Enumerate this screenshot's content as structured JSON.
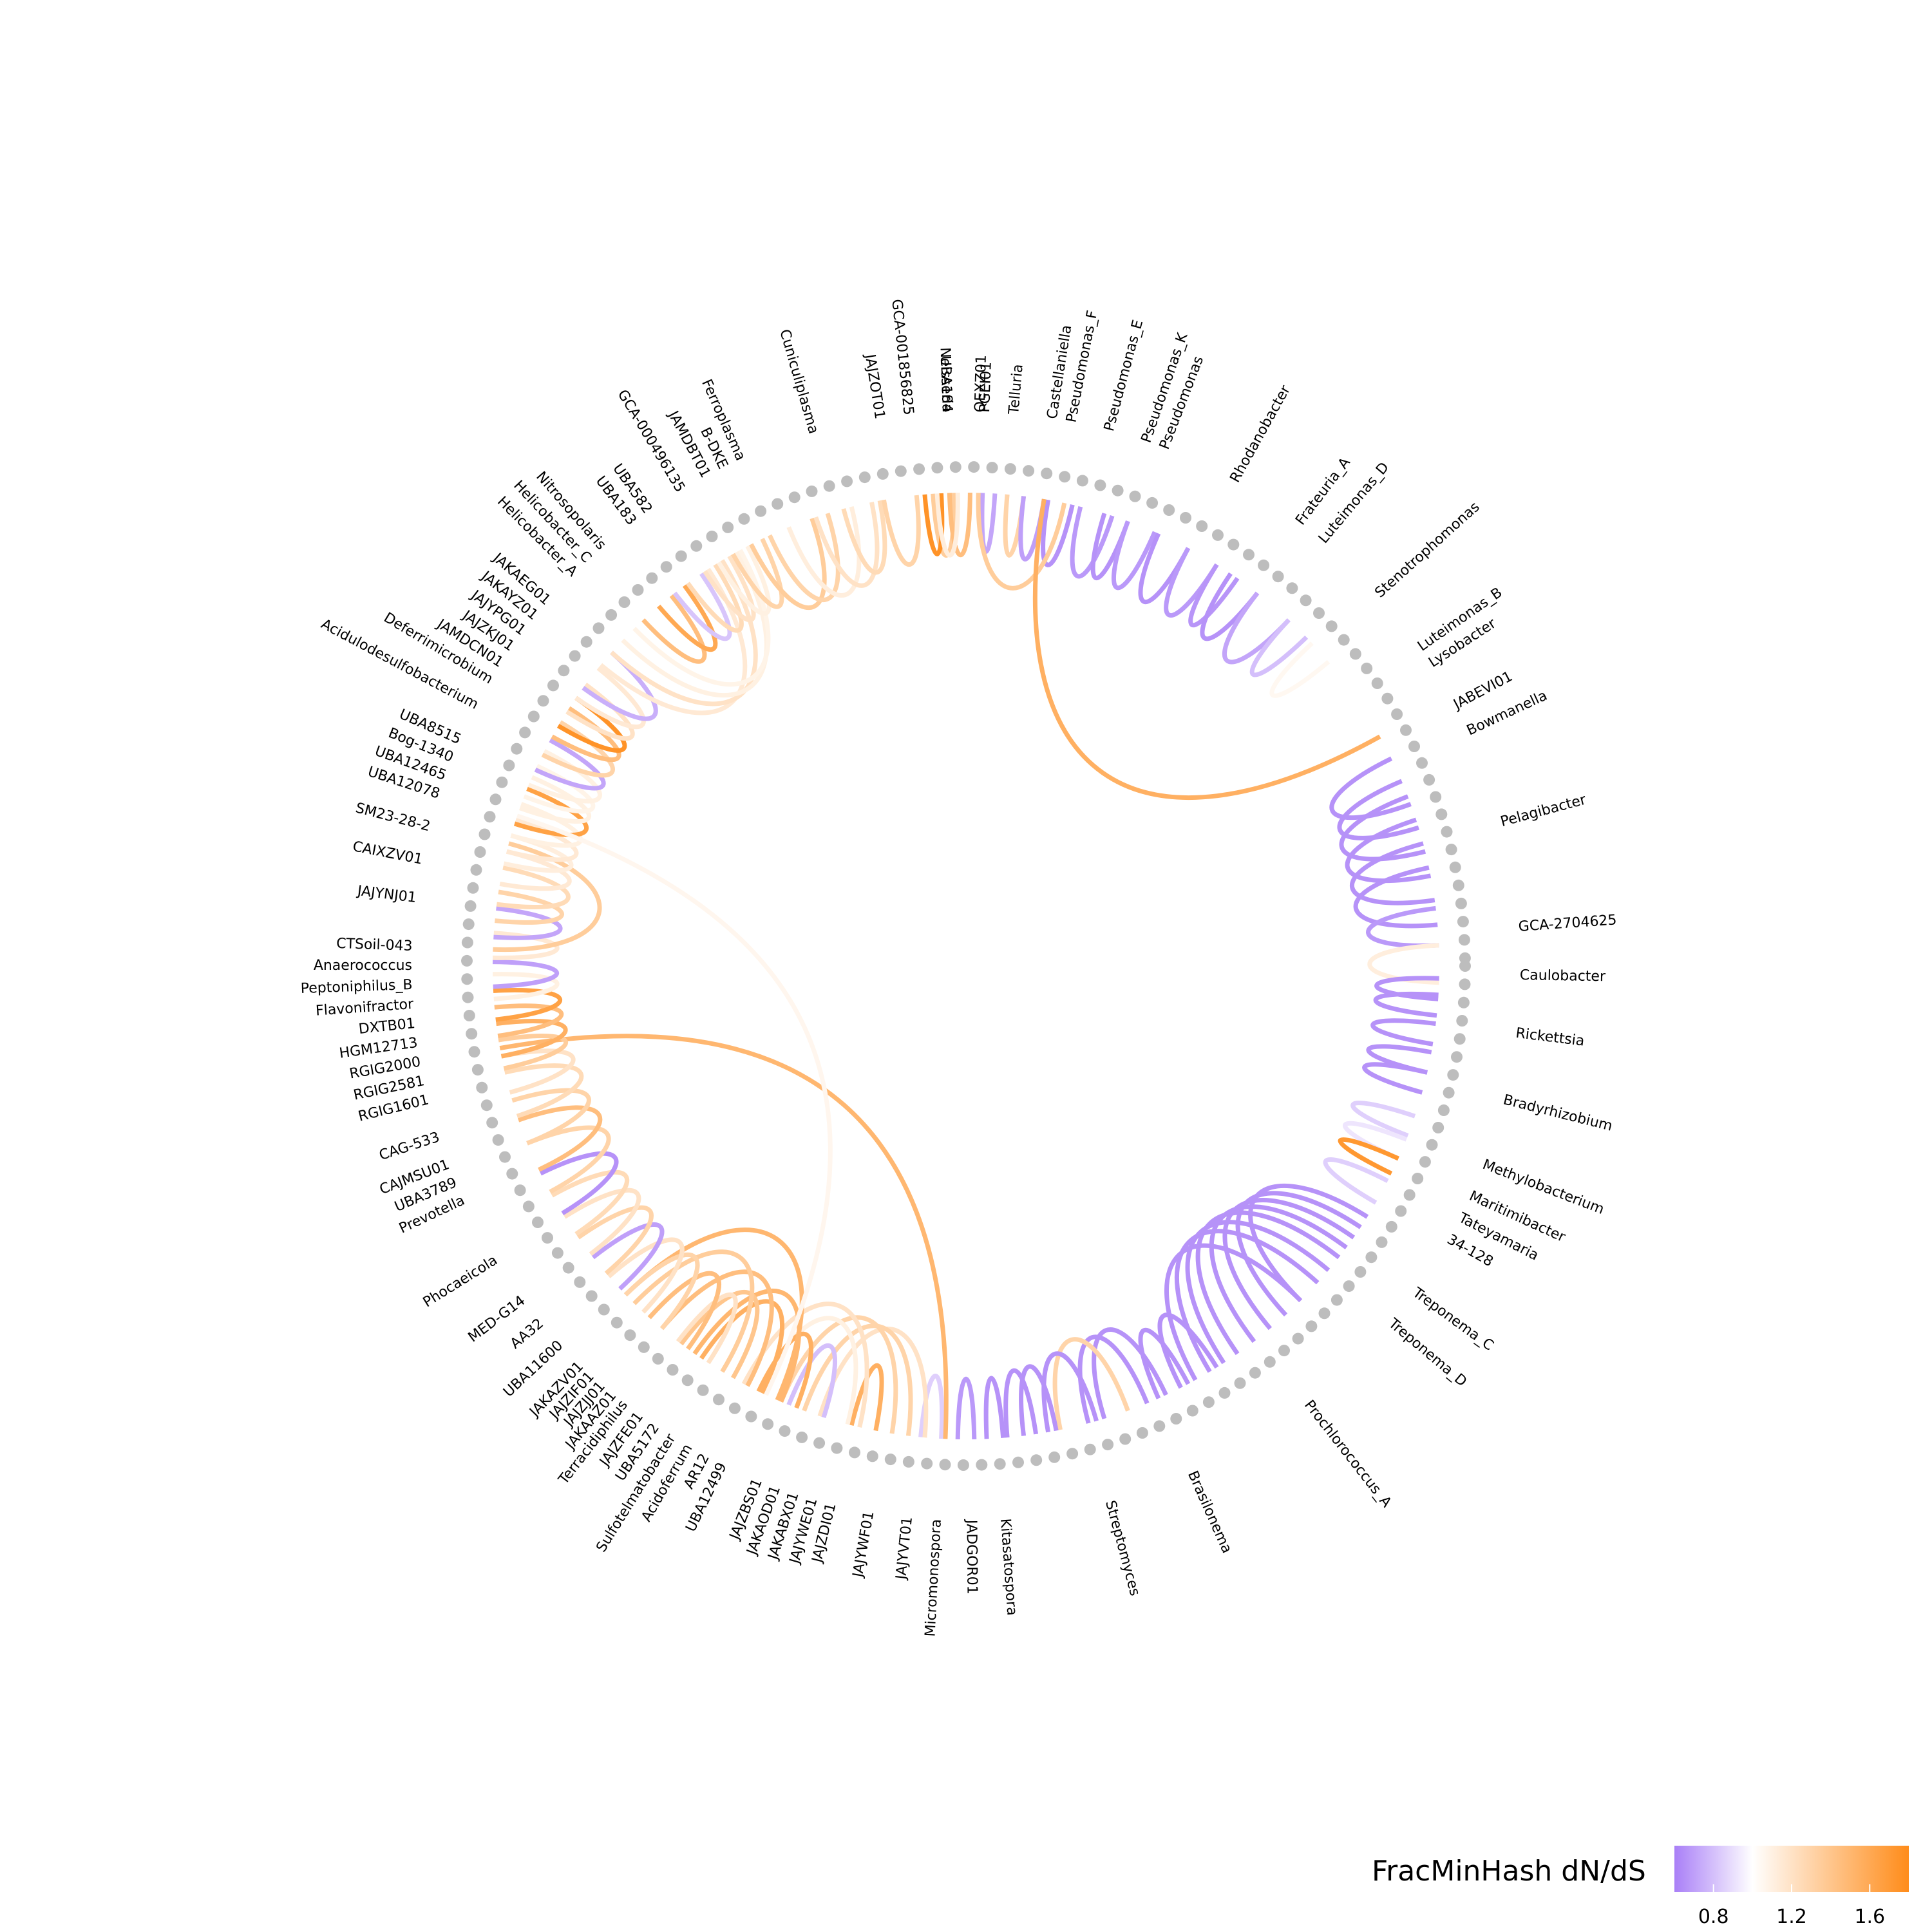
{
  "chart_data": {
    "type": "chord-diagram",
    "colors": {
      "low": "#a97ff7",
      "mid": "#ffffff",
      "high": "#ff8c1a",
      "node": "#bdbdbd"
    },
    "legend": {
      "title": "FracMinHash dN/dS",
      "ticks": [
        "0.8",
        "1.2",
        "1.6"
      ],
      "tick_values": [
        0.8,
        1.2,
        1.6
      ],
      "min": 0.6,
      "max": 1.8,
      "placement": "bottom-right"
    },
    "labels": [
      {
        "name": "Neisseria",
        "angle": -92
      },
      {
        "name": "PGEI01",
        "angle": -88
      },
      {
        "name": "Telluria",
        "angle": -85
      },
      {
        "name": "Castellaniella",
        "angle": -81
      },
      {
        "name": "Pseudomonas_F",
        "angle": -79
      },
      {
        "name": "Pseudomonas_E",
        "angle": -75
      },
      {
        "name": "Pseudomonas_K",
        "angle": -71
      },
      {
        "name": "Pseudomonas",
        "angle": -69
      },
      {
        "name": "Rhodanobacter",
        "angle": -61
      },
      {
        "name": "Frateuria_A",
        "angle": -53
      },
      {
        "name": "Luteimonas_D",
        "angle": -50
      },
      {
        "name": "Stenotrophomonas",
        "angle": -42
      },
      {
        "name": "Luteimonas_B",
        "angle": -35
      },
      {
        "name": "Lysobacter",
        "angle": -33
      },
      {
        "name": "JABEVI01",
        "angle": -28
      },
      {
        "name": "Bowmanella",
        "angle": -25
      },
      {
        "name": "Pelagibacter",
        "angle": -15
      },
      {
        "name": "GCA-2704625",
        "angle": -4
      },
      {
        "name": "Caulobacter",
        "angle": 1
      },
      {
        "name": "Rickettsia",
        "angle": 7
      },
      {
        "name": "Bradyrhizobium",
        "angle": 14
      },
      {
        "name": "Methylobacterium",
        "angle": 21
      },
      {
        "name": "Maritimibacter",
        "angle": 24.5
      },
      {
        "name": "Tateyamaria",
        "angle": 27
      },
      {
        "name": "34-128",
        "angle": 29.5
      },
      {
        "name": "Treponema_C",
        "angle": 36
      },
      {
        "name": "Treponema_D",
        "angle": 40
      },
      {
        "name": "Prochlorococcus_A",
        "angle": 52
      },
      {
        "name": "Brasilonema",
        "angle": 66
      },
      {
        "name": "Streptomyces",
        "angle": 75
      },
      {
        "name": "Kitasatospora",
        "angle": 86
      },
      {
        "name": "JADGOR01",
        "angle": 89.5
      },
      {
        "name": "Micromonospora",
        "angle": 93
      },
      {
        "name": "JAJYVT01",
        "angle": 96
      },
      {
        "name": "JAJYWF01",
        "angle": 100
      },
      {
        "name": "JAJZDI01",
        "angle": 104
      },
      {
        "name": "JAJYWE01",
        "angle": 106
      },
      {
        "name": "JAKABX01",
        "angle": 108
      },
      {
        "name": "JAKAOD01",
        "angle": 110
      },
      {
        "name": "JAJZBS01",
        "angle": 112
      },
      {
        "name": "UBA12499",
        "angle": 116
      },
      {
        "name": "AR12",
        "angle": 118
      },
      {
        "name": "Acidoferrum",
        "angle": 120
      },
      {
        "name": "Sulfotelmatobacter",
        "angle": 122
      },
      {
        "name": "UBA5172",
        "angle": 124
      },
      {
        "name": "JAJZFE01",
        "angle": 126
      },
      {
        "name": "Terracidiphilus",
        "angle": 128
      },
      {
        "name": "JAKAAZ01",
        "angle": 129.5
      },
      {
        "name": "JAJZJJ01",
        "angle": 131
      },
      {
        "name": "JAJZIF01",
        "angle": 132.5
      },
      {
        "name": "JAKAZV01",
        "angle": 134
      },
      {
        "name": "UBA11600",
        "angle": 137
      },
      {
        "name": "AA32",
        "angle": 140
      },
      {
        "name": "MED-G14",
        "angle": 143
      },
      {
        "name": "Phocaeicola",
        "angle": 148
      },
      {
        "name": "Prevotella",
        "angle": 155
      },
      {
        "name": "UBA3789",
        "angle": 157
      },
      {
        "name": "CAJMSU01",
        "angle": 159
      },
      {
        "name": "CAG-533",
        "angle": 162
      },
      {
        "name": "RGIG1601",
        "angle": 166
      },
      {
        "name": "RGIG2581",
        "angle": 168
      },
      {
        "name": "RGIG2000",
        "angle": 170
      },
      {
        "name": "HGM12713",
        "angle": 172
      },
      {
        "name": "DXTB01",
        "angle": 174
      },
      {
        "name": "Flavonifractor",
        "angle": 176
      },
      {
        "name": "Peptoniphilus_B",
        "angle": 178
      },
      {
        "name": "Anaerococcus",
        "angle": 180
      },
      {
        "name": "CTSoil-043",
        "angle": 182
      },
      {
        "name": "JAJYNJ01",
        "angle": 187
      },
      {
        "name": "CAIXZV01",
        "angle": 191
      },
      {
        "name": "SM23-28-2",
        "angle": 194.5
      },
      {
        "name": "UBA12078",
        "angle": 198
      },
      {
        "name": "UBA12465",
        "angle": 200
      },
      {
        "name": "Bog-1340",
        "angle": 202
      },
      {
        "name": "UBA8515",
        "angle": 204
      },
      {
        "name": "Acidulodesulfobacterium",
        "angle": 208
      },
      {
        "name": "Deferrimicrobium",
        "angle": 211
      },
      {
        "name": "JAMDCN01",
        "angle": 213
      },
      {
        "name": "JAJZKJ01",
        "angle": 215
      },
      {
        "name": "JAJYPG01",
        "angle": 217
      },
      {
        "name": "JAKAYZ01",
        "angle": 219
      },
      {
        "name": "JAKAEG01",
        "angle": 221
      },
      {
        "name": "Helicobacter_A",
        "angle": 225
      },
      {
        "name": "Helicobacter_C",
        "angle": 227
      },
      {
        "name": "Nitrosopolaris",
        "angle": 229
      },
      {
        "name": "UBA183",
        "angle": 233
      },
      {
        "name": "UBA582",
        "angle": 235
      },
      {
        "name": "GCA-000496135",
        "angle": 239
      },
      {
        "name": "JAMDBT01",
        "angle": 242
      },
      {
        "name": "B-DKE",
        "angle": 244
      },
      {
        "name": "Ferroplasma",
        "angle": 246
      },
      {
        "name": "Cuniculiplasma",
        "angle": 254
      },
      {
        "name": "JAJZOT01",
        "angle": 261
      },
      {
        "name": "GCA-001856825",
        "angle": 264
      },
      {
        "name": "UBA184",
        "angle": 268
      },
      {
        "name": "QEXZ01",
        "angle": 271.5
      }
    ],
    "links": [
      {
        "a": -94,
        "b": -91.5,
        "v": 1.35
      },
      {
        "a": -92,
        "b": -89.5,
        "v": 1.45
      },
      {
        "a": -88,
        "b": -86.5,
        "v": 0.72
      },
      {
        "a": -85,
        "b": -83,
        "v": 1.3
      },
      {
        "a": -83,
        "b": -80.5,
        "v": 0.7
      },
      {
        "a": -80,
        "b": -77,
        "v": 0.66
      },
      {
        "a": -76,
        "b": -72,
        "v": 0.68
      },
      {
        "a": -73,
        "b": -70,
        "v": 0.66
      },
      {
        "a": -70,
        "b": -66.5,
        "v": 0.68
      },
      {
        "a": -66,
        "b": -62,
        "v": 0.66
      },
      {
        "a": -62,
        "b": -58,
        "v": 0.68
      },
      {
        "a": -58,
        "b": -55,
        "v": 0.67
      },
      {
        "a": -56,
        "b": -52,
        "v": 0.66
      },
      {
        "a": -52,
        "b": -47,
        "v": 0.72
      },
      {
        "a": -47,
        "b": -44,
        "v": 0.8
      },
      {
        "a": -43,
        "b": -40,
        "v": 1.05
      },
      {
        "a": -88.5,
        "b": -78,
        "v": 1.35
      },
      {
        "a": -80.5,
        "b": -29,
        "v": 1.55
      },
      {
        "a": -26,
        "b": -20,
        "v": 0.66
      },
      {
        "a": -23,
        "b": -17,
        "v": 0.66
      },
      {
        "a": -21,
        "b": -14,
        "v": 0.66
      },
      {
        "a": -18,
        "b": -11,
        "v": 0.66
      },
      {
        "a": -15,
        "b": -8,
        "v": 0.66
      },
      {
        "a": -12,
        "b": -5,
        "v": 0.66
      },
      {
        "a": -7,
        "b": -2.5,
        "v": 0.68
      },
      {
        "a": -2.5,
        "b": 2,
        "v": 1.12
      },
      {
        "a": 1.5,
        "b": 4,
        "v": 0.66
      },
      {
        "a": 3.5,
        "b": 6,
        "v": 0.66
      },
      {
        "a": 7,
        "b": 9.5,
        "v": 0.66
      },
      {
        "a": 10.5,
        "b": 13,
        "v": 0.66
      },
      {
        "a": 13,
        "b": 15.5,
        "v": 0.66
      },
      {
        "a": 18.5,
        "b": 21,
        "v": 0.85
      },
      {
        "a": 21.5,
        "b": 24,
        "v": 0.92
      },
      {
        "a": 24,
        "b": 26,
        "v": 1.72
      },
      {
        "a": 27,
        "b": 30,
        "v": 0.85
      },
      {
        "a": 32,
        "b": 45,
        "v": 0.66
      },
      {
        "a": 33.5,
        "b": 47.5,
        "v": 0.66
      },
      {
        "a": 35,
        "b": 50,
        "v": 0.66
      },
      {
        "a": 36.5,
        "b": 52.5,
        "v": 0.66
      },
      {
        "a": 38,
        "b": 55,
        "v": 0.66
      },
      {
        "a": 40,
        "b": 57,
        "v": 0.66
      },
      {
        "a": 42,
        "b": 59,
        "v": 0.66
      },
      {
        "a": 45,
        "b": 61,
        "v": 0.66
      },
      {
        "a": 58,
        "b": 63,
        "v": 0.66
      },
      {
        "a": 62,
        "b": 66,
        "v": 0.66
      },
      {
        "a": 65,
        "b": 73,
        "v": 0.66
      },
      {
        "a": 67.5,
        "b": 75,
        "v": 0.66
      },
      {
        "a": 70,
        "b": 78.5,
        "v": 1.3
      },
      {
        "a": 74,
        "b": 80,
        "v": 0.66
      },
      {
        "a": 79,
        "b": 83,
        "v": 0.66
      },
      {
        "a": 81.5,
        "b": 85,
        "v": 0.66
      },
      {
        "a": 85.5,
        "b": 87.5,
        "v": 0.66
      },
      {
        "a": 89,
        "b": 91,
        "v": 0.68
      },
      {
        "a": 93,
        "b": 95.5,
        "v": 0.85
      },
      {
        "a": 92.5,
        "b": 170,
        "v": 1.5
      },
      {
        "a": 95,
        "b": 108,
        "v": 1.2
      },
      {
        "a": 97,
        "b": 110,
        "v": 1.3
      },
      {
        "a": 99,
        "b": 113,
        "v": 1.3
      },
      {
        "a": 101,
        "b": 104,
        "v": 1.55
      },
      {
        "a": 103,
        "b": 118,
        "v": 1.2
      },
      {
        "a": 104.5,
        "b": 116,
        "v": 1.1
      },
      {
        "a": 107.5,
        "b": 112,
        "v": 0.8
      },
      {
        "a": 111,
        "b": 116,
        "v": 1.55
      },
      {
        "a": 113,
        "b": 125,
        "v": 1.5
      },
      {
        "a": 115.5,
        "b": 124,
        "v": 1.55
      },
      {
        "a": 113.5,
        "b": 136,
        "v": 1.5
      },
      {
        "a": 117.5,
        "b": 130,
        "v": 1.45
      },
      {
        "a": 119.5,
        "b": 127,
        "v": 1.4
      },
      {
        "a": 121,
        "b": 134.5,
        "v": 1.35
      },
      {
        "a": 123,
        "b": 127.5,
        "v": 1.2
      },
      {
        "a": 126,
        "b": 132,
        "v": 1.45
      },
      {
        "a": 130,
        "b": 136,
        "v": 1.3
      },
      {
        "a": 133,
        "b": 139,
        "v": 1.2
      },
      {
        "a": 137,
        "b": 142,
        "v": 0.7
      },
      {
        "a": 139.5,
        "b": 145,
        "v": 1.3
      },
      {
        "a": 142.5,
        "b": 148,
        "v": 1.2
      },
      {
        "a": 145.5,
        "b": 151,
        "v": 1.25
      },
      {
        "a": 148.5,
        "b": 154,
        "v": 0.66
      },
      {
        "a": 151.5,
        "b": 158,
        "v": 1.3
      },
      {
        "a": 154.5,
        "b": 161,
        "v": 1.45
      },
      {
        "a": 158,
        "b": 163.5,
        "v": 1.3
      },
      {
        "a": 161.5,
        "b": 167,
        "v": 1.25
      },
      {
        "a": 164.5,
        "b": 169,
        "v": 1.2
      },
      {
        "a": 167.5,
        "b": 171,
        "v": 1.35
      },
      {
        "a": 169,
        "b": 173,
        "v": 1.55
      },
      {
        "a": 171.5,
        "b": 175,
        "v": 1.45
      },
      {
        "a": 173.5,
        "b": 177,
        "v": 1.65
      },
      {
        "a": 176,
        "b": 179,
        "v": 1.1
      },
      {
        "a": 177.5,
        "b": 180.5,
        "v": 0.7
      },
      {
        "a": 181,
        "b": 184,
        "v": 1.15
      },
      {
        "a": 183.5,
        "b": 187,
        "v": 0.72
      },
      {
        "a": 182,
        "b": 195,
        "v": 1.35
      },
      {
        "a": 185.5,
        "b": 189,
        "v": 1.3
      },
      {
        "a": 187.5,
        "b": 192,
        "v": 1.25
      },
      {
        "a": 190,
        "b": 194,
        "v": 1.15
      },
      {
        "a": 192.5,
        "b": 196,
        "v": 1.12
      },
      {
        "a": 194,
        "b": 198,
        "v": 1.15
      },
      {
        "a": 196,
        "b": 200,
        "v": 1.1
      },
      {
        "a": 197.5,
        "b": 202,
        "v": 1.65
      },
      {
        "a": 199.5,
        "b": 203.5,
        "v": 1.1
      },
      {
        "a": 201,
        "b": 205,
        "v": 1.08
      },
      {
        "a": 202.5,
        "b": 207,
        "v": 1.1
      },
      {
        "a": 198.5,
        "b": 115,
        "v": 1.06
      },
      {
        "a": 204.5,
        "b": 208.5,
        "v": 0.72
      },
      {
        "a": 206.5,
        "b": 211,
        "v": 1.3
      },
      {
        "a": 209,
        "b": 213,
        "v": 1.45
      },
      {
        "a": 210.5,
        "b": 214.5,
        "v": 1.75
      },
      {
        "a": 212.5,
        "b": 216.5,
        "v": 1.2
      },
      {
        "a": 214.5,
        "b": 219,
        "v": 1.15
      },
      {
        "a": 216,
        "b": 221.5,
        "v": 0.75
      },
      {
        "a": 219.5,
        "b": 237,
        "v": 1.15
      },
      {
        "a": 221.5,
        "b": 239,
        "v": 1.2
      },
      {
        "a": 223.5,
        "b": 241,
        "v": 1.1
      },
      {
        "a": 225.5,
        "b": 241.5,
        "v": 1.08
      },
      {
        "a": 227,
        "b": 231.5,
        "v": 1.45
      },
      {
        "a": 229.5,
        "b": 233.5,
        "v": 1.6
      },
      {
        "a": 232,
        "b": 236,
        "v": 0.82
      },
      {
        "a": 234,
        "b": 238,
        "v": 1.25
      },
      {
        "a": 236.5,
        "b": 240,
        "v": 1.2
      },
      {
        "a": 238.5,
        "b": 242.5,
        "v": 1.1
      },
      {
        "a": 240.5,
        "b": 244.5,
        "v": 1.3
      },
      {
        "a": 243,
        "b": 251,
        "v": 1.35
      },
      {
        "a": 245.5,
        "b": 253,
        "v": 1.3
      },
      {
        "a": 248,
        "b": 256,
        "v": 1.12
      },
      {
        "a": 251.5,
        "b": 258.5,
        "v": 1.2
      },
      {
        "a": 255,
        "b": 259.5,
        "v": 1.25
      },
      {
        "a": 260,
        "b": 264,
        "v": 1.3
      },
      {
        "a": 265,
        "b": 267,
        "v": 1.75
      },
      {
        "a": 266.5,
        "b": 269,
        "v": 1.12
      }
    ]
  }
}
